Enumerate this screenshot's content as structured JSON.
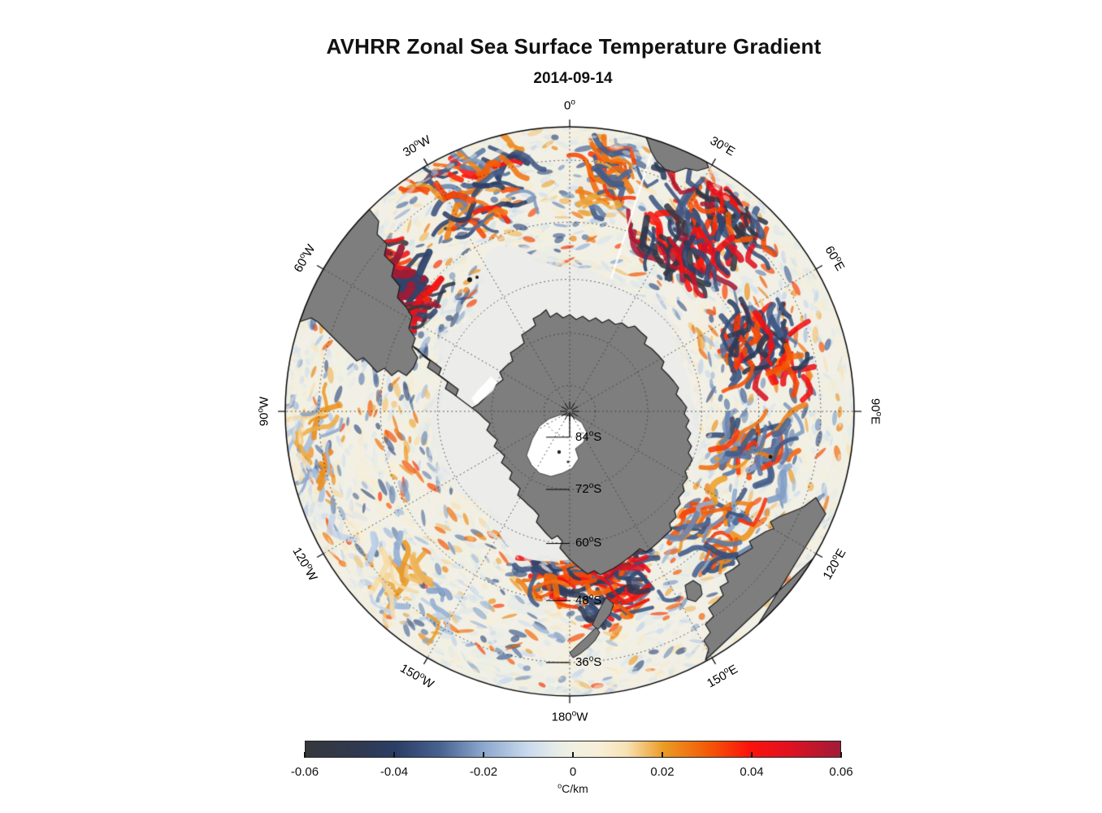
{
  "title": "AVHRR Zonal Sea Surface Temperature Gradient",
  "subtitle": "2014-09-14",
  "map": {
    "longitude_labels": [
      {
        "deg": "0",
        "hemi": ""
      },
      {
        "deg": "30",
        "hemi": "E"
      },
      {
        "deg": "60",
        "hemi": "E"
      },
      {
        "deg": "90",
        "hemi": "E"
      },
      {
        "deg": "120",
        "hemi": "E"
      },
      {
        "deg": "150",
        "hemi": "E"
      },
      {
        "deg": "180",
        "hemi": "W"
      },
      {
        "deg": "150",
        "hemi": "W"
      },
      {
        "deg": "120",
        "hemi": "W"
      },
      {
        "deg": "90",
        "hemi": "W"
      },
      {
        "deg": "60",
        "hemi": "W"
      },
      {
        "deg": "30",
        "hemi": "W"
      }
    ],
    "latitude_labels": [
      {
        "deg": "84",
        "hemi": "S"
      },
      {
        "deg": "72",
        "hemi": "S"
      },
      {
        "deg": "60",
        "hemi": "S"
      },
      {
        "deg": "48",
        "hemi": "S"
      },
      {
        "deg": "36",
        "hemi": "S"
      }
    ],
    "colors": {
      "land": "#7e7e7e",
      "land_outline": "#1a1a1a",
      "sea_ice": "#ecedeb",
      "ocean_base": "#f2f0e6",
      "grid": "#3a3a3a"
    }
  },
  "colorbar": {
    "min": -0.06,
    "max": 0.06,
    "tick_labels": [
      "-0.06",
      "-0.04",
      "-0.02",
      "0",
      "0.02",
      "0.04",
      "0.06"
    ],
    "unit_degree": "o",
    "unit_text": "C/km",
    "stops": [
      {
        "t": 0.0,
        "color": "#36383c"
      },
      {
        "t": 0.1,
        "color": "#2f3950"
      },
      {
        "t": 0.17,
        "color": "#2b3e66"
      },
      {
        "t": 0.25,
        "color": "#47618f"
      },
      {
        "t": 0.33,
        "color": "#8aa6cc"
      },
      {
        "t": 0.42,
        "color": "#ccdcee"
      },
      {
        "t": 0.47,
        "color": "#e6ece7"
      },
      {
        "t": 0.5,
        "color": "#f1f0e2"
      },
      {
        "t": 0.55,
        "color": "#f8efd7"
      },
      {
        "t": 0.6,
        "color": "#f7e2b5"
      },
      {
        "t": 0.67,
        "color": "#eb9b24"
      },
      {
        "t": 0.75,
        "color": "#f35c07"
      },
      {
        "t": 0.83,
        "color": "#fb130b"
      },
      {
        "t": 0.9,
        "color": "#e21120"
      },
      {
        "t": 1.0,
        "color": "#a11b38"
      }
    ]
  },
  "chart_data": {
    "type": "heatmap",
    "title": "AVHRR Zonal Sea Surface Temperature Gradient",
    "subtitle": "2014-09-14",
    "projection": "South Polar Stereographic (Antarctica centered)",
    "longitude_labels": [
      "0",
      "30E",
      "60E",
      "90E",
      "120E",
      "150E",
      "180W",
      "150W",
      "120W",
      "90W",
      "60W",
      "30W"
    ],
    "longitude_gridline_spacing_deg": 30,
    "latitude_ring_labels": [
      "84S",
      "72S",
      "60S",
      "48S",
      "36S"
    ],
    "value_range": [
      -0.06,
      0.06
    ],
    "colorbar_ticks": [
      -0.06,
      -0.04,
      -0.02,
      0,
      0.02,
      0.04,
      0.06
    ],
    "units": "°C/km",
    "grid": "dotted graticule over map; solid outer circle with outward meridian ticks",
    "legend_position": "horizontal colorbar below map",
    "colormap": "diverging: dark gray/navy blue (negative) -> pale cream white (zero) -> orange/red/crimson (positive)",
    "visible_features": [
      "gray land: Antarctica at center, southern South America (upper left), southern Africa (upper right), Australia with Tasmania (lower right), New Zealand (bottom center-right)",
      "pale gray sea-ice/no-data region surrounding Antarctica out to roughly 60S, widest in Weddell and Ross sea sectors",
      "intense +/-0.06 C/km gradient filaments in SW Atlantic near Falklands (40-60W)",
      "intense filament band in Agulhas Return Current sector (20-70E)",
      "strong filaments south of Australia / New Zealand (140E-170W)",
      "weak pale gradients in SE Pacific sector (90-150W)",
      "white ice-shelf areas inside Antarctica (Ross/Ronne shelves)",
      "pole marked with asterisk; line from pole to 84S ring"
    ]
  }
}
